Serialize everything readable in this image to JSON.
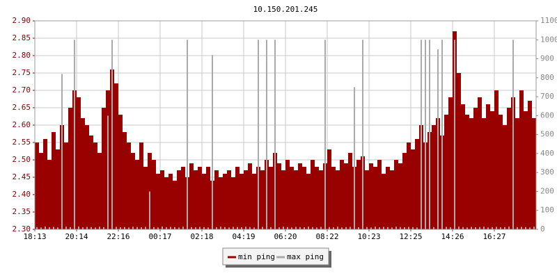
{
  "chart_data": {
    "type": "bar",
    "title": "10.150.201.245",
    "categories": [
      "18:13",
      null,
      null,
      null,
      null,
      null,
      null,
      null,
      null,
      null,
      "20:14",
      null,
      null,
      null,
      null,
      null,
      null,
      null,
      null,
      null,
      "22:16",
      null,
      null,
      null,
      null,
      null,
      null,
      null,
      null,
      null,
      "00:17",
      null,
      null,
      null,
      null,
      null,
      null,
      null,
      null,
      null,
      "02:18",
      null,
      null,
      null,
      null,
      null,
      null,
      null,
      null,
      null,
      "04:19",
      null,
      null,
      null,
      null,
      null,
      null,
      null,
      null,
      null,
      "06:20",
      null,
      null,
      null,
      null,
      null,
      null,
      null,
      null,
      null,
      "08:22",
      null,
      null,
      null,
      null,
      null,
      null,
      null,
      null,
      null,
      "10:23",
      null,
      null,
      null,
      null,
      null,
      null,
      null,
      null,
      null,
      "12:25",
      null,
      null,
      null,
      null,
      null,
      null,
      null,
      null,
      null,
      "14:26",
      null,
      null,
      null,
      null,
      null,
      null,
      null,
      null,
      null,
      "16:27",
      null,
      null,
      null,
      null,
      null,
      null,
      null,
      null,
      null
    ],
    "series": [
      {
        "name": "min ping",
        "color": "#990000",
        "values": [
          2.55,
          2.52,
          2.56,
          2.5,
          2.58,
          2.53,
          2.6,
          2.55,
          2.65,
          2.7,
          2.68,
          2.62,
          2.6,
          2.57,
          2.55,
          2.52,
          2.65,
          2.7,
          2.76,
          2.72,
          2.63,
          2.58,
          2.55,
          2.52,
          2.5,
          2.55,
          2.48,
          2.52,
          2.5,
          2.46,
          2.47,
          2.45,
          2.46,
          2.44,
          2.47,
          2.48,
          2.45,
          2.49,
          2.47,
          2.48,
          2.46,
          2.48,
          2.44,
          2.47,
          2.45,
          2.46,
          2.47,
          2.45,
          2.48,
          2.46,
          2.47,
          2.49,
          2.46,
          2.48,
          2.47,
          2.5,
          2.48,
          2.52,
          2.49,
          2.47,
          2.5,
          2.48,
          2.47,
          2.49,
          2.48,
          2.46,
          2.5,
          2.48,
          2.47,
          2.49,
          2.53,
          2.48,
          2.47,
          2.5,
          2.49,
          2.52,
          2.48,
          2.5,
          2.51,
          2.47,
          2.49,
          2.48,
          2.5,
          2.46,
          2.48,
          2.47,
          2.5,
          2.49,
          2.52,
          2.55,
          2.53,
          2.56,
          2.6,
          2.55,
          2.58,
          2.6,
          2.62,
          2.57,
          2.63,
          2.68,
          2.87,
          2.75,
          2.66,
          2.63,
          2.62,
          2.65,
          2.68,
          2.62,
          2.66,
          2.64,
          2.7,
          2.63,
          2.6,
          2.65,
          2.68,
          2.62,
          2.7,
          2.64,
          2.67,
          2.62
        ]
      },
      {
        "name": "max ping",
        "color": "#aaaaaa",
        "axis": "y2",
        "values": [
          12,
          10,
          15,
          11,
          13,
          10,
          820,
          14,
          12,
          1000,
          15,
          11,
          13,
          12,
          10,
          14,
          12,
          600,
          1000,
          13,
          11,
          12,
          10,
          14,
          12,
          11,
          13,
          200,
          12,
          10,
          15,
          11,
          13,
          12,
          10,
          14,
          1000,
          12,
          11,
          13,
          12,
          10,
          920,
          11,
          14,
          12,
          10,
          13,
          12,
          11,
          14,
          12,
          10,
          1000,
          13,
          1000,
          12,
          1000,
          11,
          14,
          12,
          10,
          13,
          12,
          11,
          14,
          12,
          10,
          13,
          1000,
          12,
          11,
          14,
          10,
          12,
          13,
          750,
          11,
          1000,
          12,
          10,
          14,
          11,
          13,
          12,
          10,
          14,
          12,
          11,
          13,
          12,
          10,
          1000,
          1000,
          1000,
          12,
          950,
          1000,
          13,
          11,
          1000,
          14,
          12,
          10,
          13,
          11,
          12,
          14,
          10,
          12,
          13,
          11,
          12,
          14,
          1000,
          11,
          13,
          12,
          10,
          14
        ]
      }
    ],
    "ylim": [
      2.3,
      2.9
    ],
    "yticks": [
      {
        "value": 2.3,
        "label": "2.30"
      },
      {
        "value": 2.35,
        "label": "2.35"
      },
      {
        "value": 2.4,
        "label": "2.40"
      },
      {
        "value": 2.45,
        "label": "2.45"
      },
      {
        "value": 2.5,
        "label": "2.50"
      },
      {
        "value": 2.55,
        "label": "2.55"
      },
      {
        "value": 2.6,
        "label": "2.60"
      },
      {
        "value": 2.65,
        "label": "2.65"
      },
      {
        "value": 2.7,
        "label": "2.70"
      },
      {
        "value": 2.75,
        "label": "2.75"
      },
      {
        "value": 2.8,
        "label": "2.80"
      },
      {
        "value": 2.85,
        "label": "2.85"
      },
      {
        "value": 2.9,
        "label": "2.90"
      }
    ],
    "y2lim": [
      0,
      1100
    ],
    "y2ticks": [
      0,
      100,
      200,
      300,
      400,
      500,
      600,
      700,
      800,
      900,
      1000,
      1100
    ],
    "grid": true
  }
}
